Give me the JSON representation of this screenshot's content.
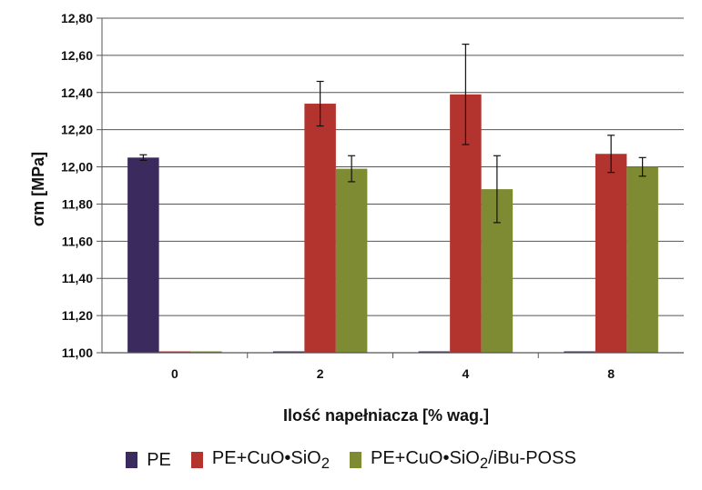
{
  "chart_data": {
    "type": "bar",
    "title": "",
    "xlabel": "Ilość napełniacza [% wag.]",
    "ylabel": "σm [MPa]",
    "ylim": [
      11.0,
      12.8
    ],
    "y_ticks": [
      "11,00",
      "11,20",
      "11,40",
      "11,60",
      "11,80",
      "12,00",
      "12,20",
      "12,40",
      "12,60",
      "12,80"
    ],
    "categories": [
      "0",
      "2",
      "4",
      "8"
    ],
    "grid": "horizontal",
    "legend_position": "bottom",
    "series": [
      {
        "name": "PE",
        "legend_main": "PE",
        "legend_sub": "",
        "legend_tail": "",
        "color": "#3a2a5e",
        "values": [
          12.05,
          11.0,
          11.0,
          11.0
        ],
        "errors": [
          0.015,
          null,
          null,
          null
        ]
      },
      {
        "name": "PE+CuO•SiO2",
        "legend_main": "PE+CuO•SiO",
        "legend_sub": "2",
        "legend_tail": "",
        "color": "#b3342f",
        "values": [
          11.0,
          12.34,
          12.39,
          12.07
        ],
        "errors": [
          null,
          0.12,
          0.27,
          0.1
        ]
      },
      {
        "name": "PE+CuO•SiO2/iBu-POSS",
        "legend_main": "PE+CuO•SiO",
        "legend_sub": "2",
        "legend_tail": "/iBu-POSS",
        "color": "#7e8b32",
        "values": [
          11.0,
          11.99,
          11.88,
          12.0
        ],
        "errors": [
          null,
          0.07,
          0.18,
          0.05
        ]
      }
    ]
  }
}
